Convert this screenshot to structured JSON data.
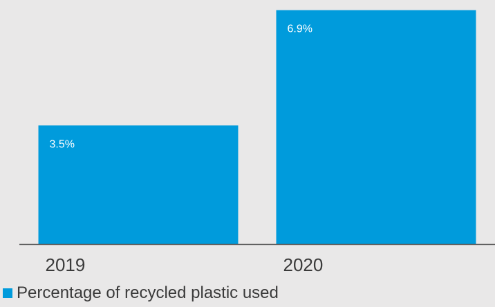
{
  "chart_data": {
    "type": "bar",
    "categories": [
      "2019",
      "2020"
    ],
    "series": [
      {
        "name": "Percentage of recycled plastic used",
        "values": [
          3.5,
          6.9
        ],
        "value_labels": [
          "3.5%",
          "6.9%"
        ],
        "color": "#009bdc"
      }
    ],
    "ylim": [
      0,
      7.2
    ],
    "grid": false,
    "legend_position": "bottom-left"
  }
}
